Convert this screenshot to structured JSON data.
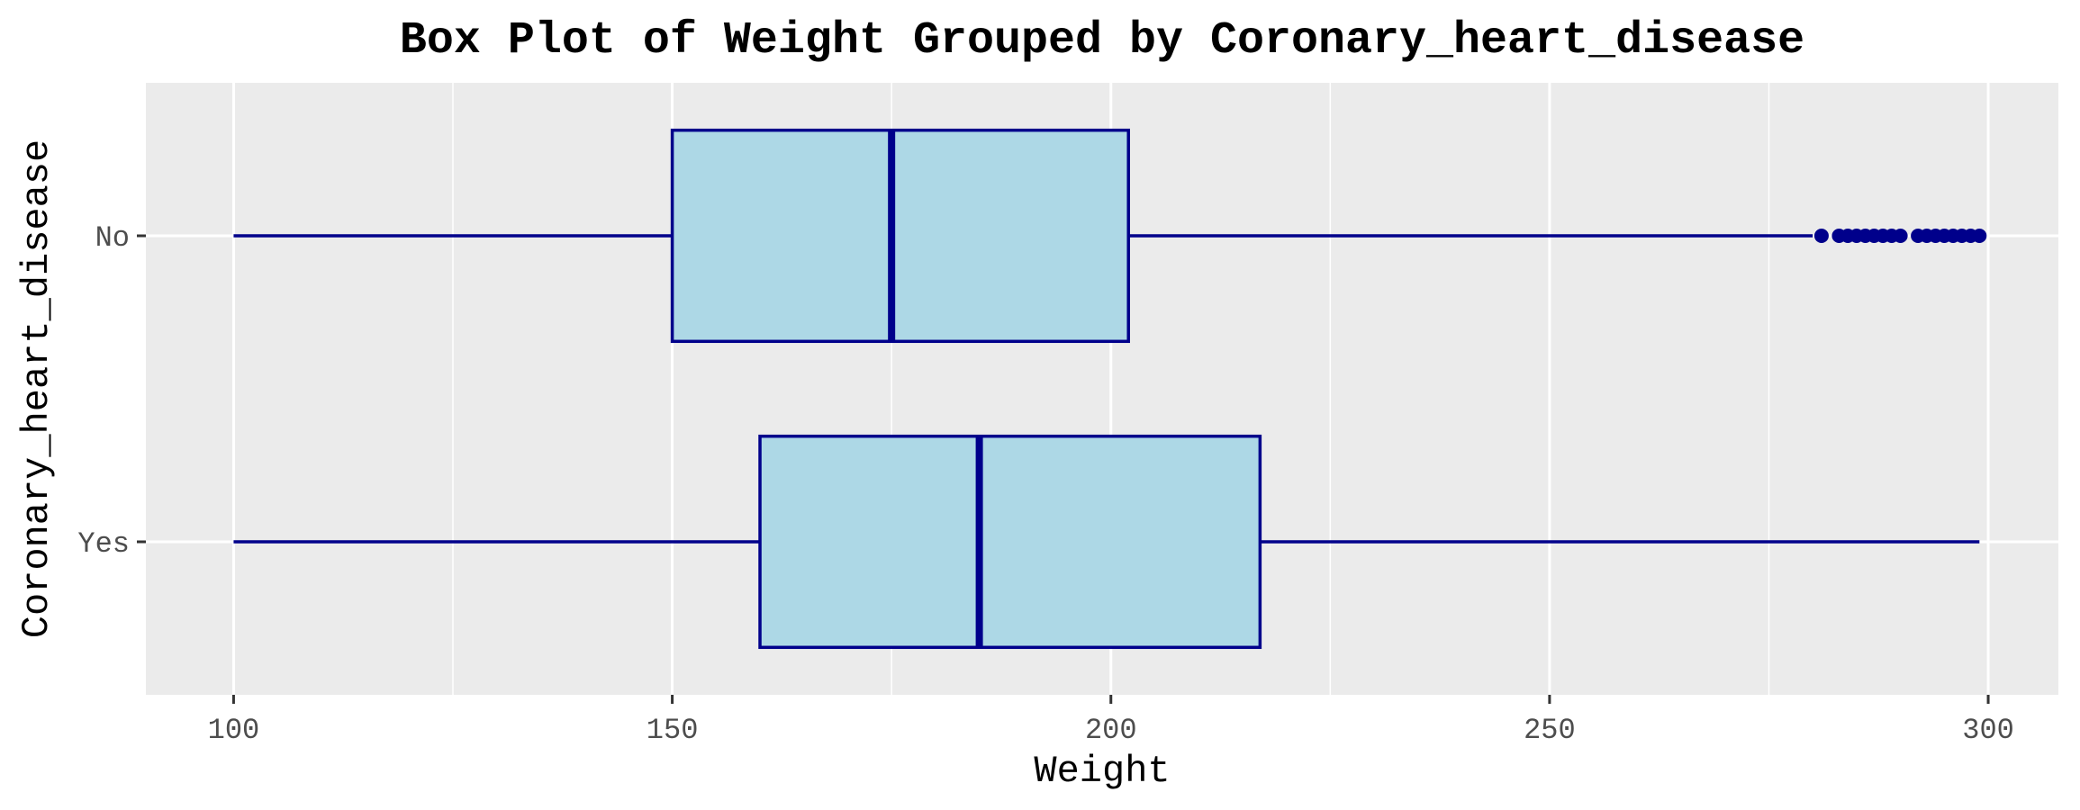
{
  "chart_data": {
    "type": "boxplot",
    "orientation": "horizontal",
    "title": "Box Plot of Weight Grouped by Coronary_heart_disease",
    "xlabel": "Weight",
    "ylabel": "Coronary_heart_disease",
    "xlim": [
      90,
      308
    ],
    "x_ticks": [
      100,
      150,
      200,
      250,
      300
    ],
    "x_tick_labels": [
      "100",
      "150",
      "200",
      "250",
      "300"
    ],
    "grid": true,
    "legend": "none",
    "colors": {
      "panel": "#ebebeb",
      "grid": "#ffffff",
      "box_fill": "#add8e6",
      "box_stroke": "#00008b",
      "tick": "#333333"
    },
    "categories": [
      "No",
      "Yes"
    ],
    "series": [
      {
        "category": "No",
        "whisker_low": 100,
        "q1": 150,
        "median": 175,
        "q3": 202,
        "whisker_high": 280,
        "outliers": [
          281,
          283,
          284,
          285,
          286,
          287,
          288,
          289,
          290,
          292,
          293,
          294,
          295,
          296,
          297,
          298,
          299
        ]
      },
      {
        "category": "Yes",
        "whisker_low": 100,
        "q1": 160,
        "median": 185,
        "q3": 217,
        "whisker_high": 299,
        "outliers": []
      }
    ]
  }
}
